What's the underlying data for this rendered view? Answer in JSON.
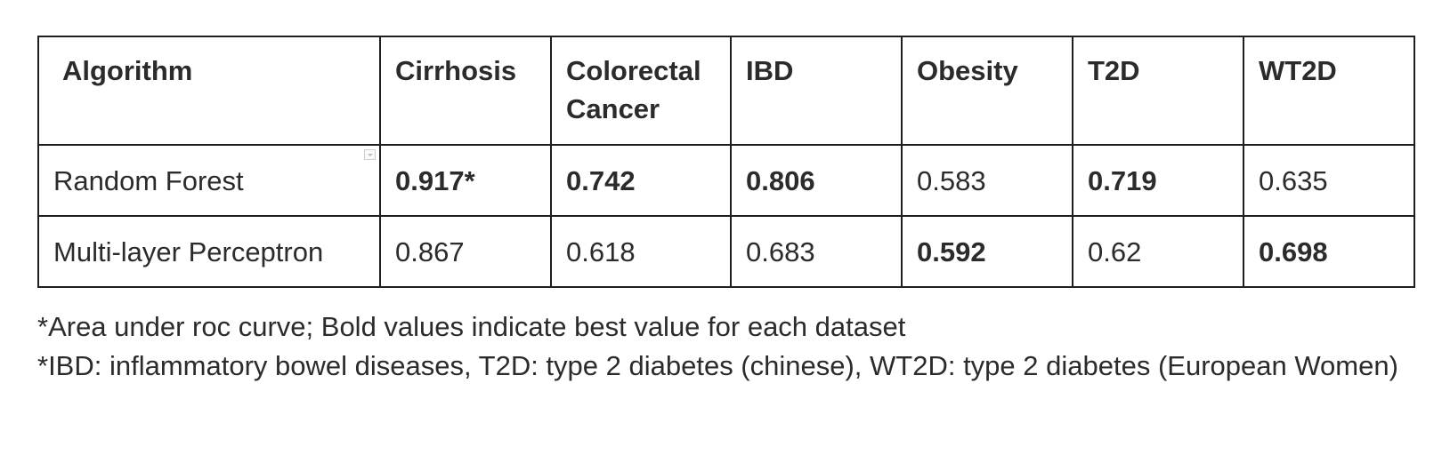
{
  "table": {
    "headers": [
      "Algorithm",
      "Cirrhosis",
      "Colorectal Cancer",
      "IBD",
      "Obesity",
      "T2D",
      "WT2D"
    ],
    "rows": [
      {
        "algorithm": "Random Forest",
        "values": [
          "0.917*",
          "0.742",
          "0.806",
          "0.583",
          "0.719",
          "0.635"
        ],
        "bold": [
          true,
          true,
          true,
          false,
          true,
          false
        ]
      },
      {
        "algorithm": "Multi-layer Perceptron",
        "values": [
          "0.867",
          "0.618",
          "0.683",
          "0.592",
          "0.62",
          "0.698"
        ],
        "bold": [
          false,
          false,
          false,
          true,
          false,
          true
        ]
      }
    ]
  },
  "footnotes": [
    "*Area under roc curve; Bold values indicate best value for each dataset",
    "*IBD: inflammatory bowel diseases, T2D: type 2 diabetes (chinese), WT2D:  type 2 diabetes (European Women)"
  ],
  "icons": {
    "cell_dropdown": "chevron-down-icon"
  }
}
